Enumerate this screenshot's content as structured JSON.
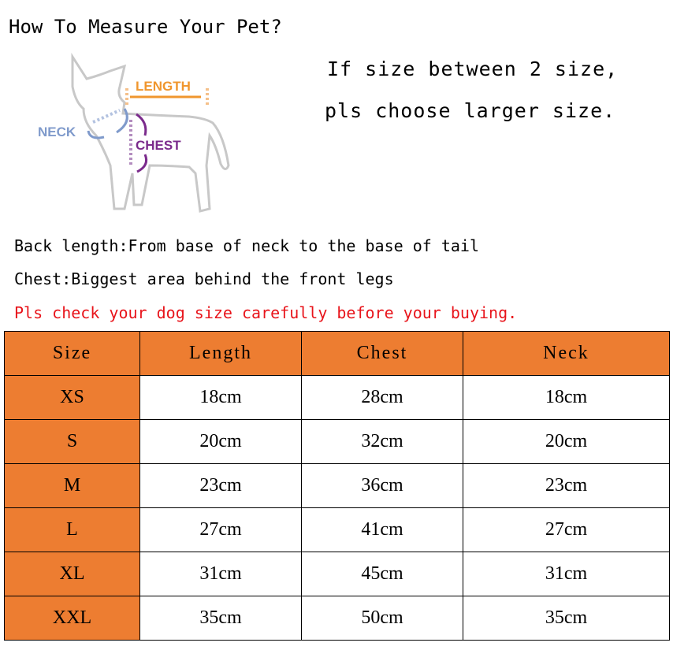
{
  "title": "How To Measure Your Pet?",
  "note": [
    "If size between 2 size,",
    "pls choose larger size."
  ],
  "diagram": {
    "length": "LENGTH",
    "neck": "NECK",
    "chest": "CHEST"
  },
  "lines": [
    "Back length:From base of neck to the base of tail",
    "Chest:Biggest area behind the front legs"
  ],
  "warning": "Pls check your dog size carefully before your buying.",
  "colors": {
    "header": "#ed7d31",
    "warning": "#e8141b",
    "length": "#f0962e",
    "neck": "#7f9acb",
    "chest": "#7b2b8c"
  },
  "table": {
    "headers": [
      "Size",
      "Length",
      "Chest",
      "Neck"
    ],
    "rows": [
      [
        "XS",
        "18cm",
        "28cm",
        "18cm"
      ],
      [
        "S",
        "20cm",
        "32cm",
        "20cm"
      ],
      [
        "M",
        "23cm",
        "36cm",
        "23cm"
      ],
      [
        "L",
        "27cm",
        "41cm",
        "27cm"
      ],
      [
        "XL",
        "31cm",
        "45cm",
        "31cm"
      ],
      [
        "XXL",
        "35cm",
        "50cm",
        "35cm"
      ]
    ]
  }
}
